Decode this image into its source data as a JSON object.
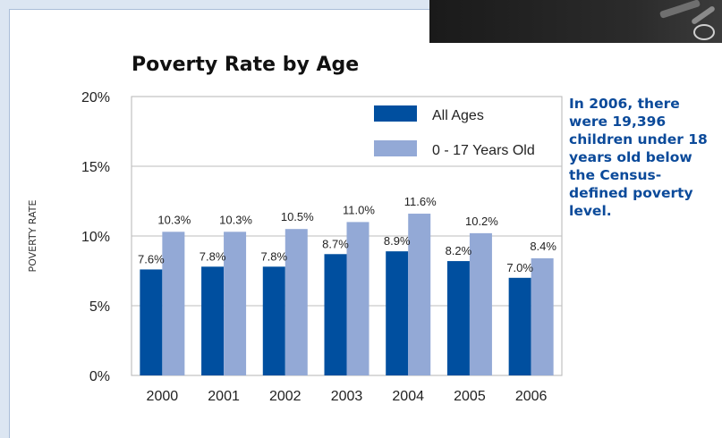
{
  "chart_data": {
    "type": "bar",
    "title": "Poverty Rate by Age",
    "ylabel": "POVERTY RATE",
    "xlabel": "",
    "ylim": [
      0,
      20
    ],
    "yticks": [
      "0%",
      "5%",
      "10%",
      "15%",
      "20%"
    ],
    "categories": [
      "2000",
      "2001",
      "2002",
      "2003",
      "2004",
      "2005",
      "2006"
    ],
    "grid": true,
    "legend": "top-right",
    "series": [
      {
        "name": "All Ages",
        "color": "#004f9f",
        "values": [
          7.6,
          7.8,
          7.8,
          8.7,
          8.9,
          8.2,
          7.0
        ],
        "labels": [
          "7.6%",
          "7.8%",
          "7.8%",
          "8.7%",
          "8.9%",
          "8.2%",
          "7.0%"
        ]
      },
      {
        "name": "0 - 17 Years Old",
        "color": "#93a9d6",
        "values": [
          10.3,
          10.3,
          10.5,
          11.0,
          11.6,
          10.2,
          8.4
        ],
        "labels": [
          "10.3%",
          "10.3%",
          "10.5%",
          "11.0%",
          "11.6%",
          "10.2%",
          "8.4%"
        ]
      }
    ]
  },
  "note": {
    "text": "In 2006, there were 19,396 children under 18 years old below the Census-defined poverty level."
  }
}
